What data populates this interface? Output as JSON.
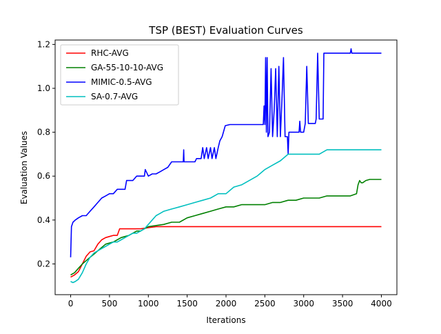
{
  "chart_data": {
    "type": "line",
    "title": "TSP (BEST) Evaluation Curves",
    "xlabel": "Iterations",
    "ylabel": "Evaluation Values",
    "xlim": [
      -200,
      4200
    ],
    "ylim": [
      0.06,
      1.22
    ],
    "xticks": [
      0,
      500,
      1000,
      1500,
      2000,
      2500,
      3000,
      3500,
      4000
    ],
    "yticks": [
      0.2,
      0.4,
      0.6,
      0.8,
      1.0,
      1.2
    ],
    "xtick_labels": [
      "0",
      "500",
      "1000",
      "1500",
      "2000",
      "2500",
      "3000",
      "3500",
      "4000"
    ],
    "ytick_labels": [
      "0.2",
      "0.4",
      "0.6",
      "0.8",
      "1.0",
      "1.2"
    ],
    "grid": false,
    "legend_position": "top-left",
    "series": [
      {
        "name": "RHC-AVG",
        "color": "#ff0000",
        "points": [
          [
            0,
            0.14
          ],
          [
            50,
            0.15
          ],
          [
            100,
            0.165
          ],
          [
            150,
            0.2
          ],
          [
            200,
            0.235
          ],
          [
            250,
            0.255
          ],
          [
            300,
            0.26
          ],
          [
            350,
            0.29
          ],
          [
            400,
            0.31
          ],
          [
            450,
            0.32
          ],
          [
            500,
            0.325
          ],
          [
            550,
            0.33
          ],
          [
            600,
            0.33
          ],
          [
            630,
            0.36
          ],
          [
            700,
            0.36
          ],
          [
            800,
            0.36
          ],
          [
            900,
            0.36
          ],
          [
            1000,
            0.365
          ],
          [
            1100,
            0.37
          ],
          [
            1300,
            0.37
          ],
          [
            2000,
            0.37
          ],
          [
            3000,
            0.37
          ],
          [
            4000,
            0.37
          ]
        ]
      },
      {
        "name": "GA-55-10-10-AVG",
        "color": "#008000",
        "points": [
          [
            0,
            0.15
          ],
          [
            50,
            0.16
          ],
          [
            100,
            0.18
          ],
          [
            150,
            0.2
          ],
          [
            200,
            0.215
          ],
          [
            250,
            0.23
          ],
          [
            300,
            0.245
          ],
          [
            350,
            0.26
          ],
          [
            400,
            0.275
          ],
          [
            450,
            0.29
          ],
          [
            500,
            0.295
          ],
          [
            550,
            0.3
          ],
          [
            600,
            0.31
          ],
          [
            650,
            0.32
          ],
          [
            700,
            0.325
          ],
          [
            750,
            0.33
          ],
          [
            800,
            0.34
          ],
          [
            850,
            0.35
          ],
          [
            900,
            0.35
          ],
          [
            950,
            0.36
          ],
          [
            1000,
            0.37
          ],
          [
            1100,
            0.375
          ],
          [
            1200,
            0.38
          ],
          [
            1300,
            0.39
          ],
          [
            1400,
            0.39
          ],
          [
            1500,
            0.41
          ],
          [
            1600,
            0.42
          ],
          [
            1700,
            0.43
          ],
          [
            1800,
            0.44
          ],
          [
            1900,
            0.45
          ],
          [
            2000,
            0.46
          ],
          [
            2100,
            0.46
          ],
          [
            2200,
            0.47
          ],
          [
            2300,
            0.47
          ],
          [
            2400,
            0.47
          ],
          [
            2500,
            0.47
          ],
          [
            2600,
            0.48
          ],
          [
            2700,
            0.48
          ],
          [
            2800,
            0.49
          ],
          [
            2900,
            0.49
          ],
          [
            3000,
            0.5
          ],
          [
            3100,
            0.5
          ],
          [
            3200,
            0.5
          ],
          [
            3300,
            0.51
          ],
          [
            3400,
            0.51
          ],
          [
            3500,
            0.51
          ],
          [
            3600,
            0.51
          ],
          [
            3680,
            0.52
          ],
          [
            3700,
            0.56
          ],
          [
            3720,
            0.58
          ],
          [
            3740,
            0.57
          ],
          [
            3760,
            0.57
          ],
          [
            3800,
            0.58
          ],
          [
            3850,
            0.585
          ],
          [
            4000,
            0.585
          ]
        ]
      },
      {
        "name": "MIMIC-0.5-AVG",
        "color": "#0000ff",
        "points": [
          [
            0,
            0.23
          ],
          [
            10,
            0.37
          ],
          [
            30,
            0.39
          ],
          [
            60,
            0.4
          ],
          [
            100,
            0.41
          ],
          [
            150,
            0.42
          ],
          [
            200,
            0.42
          ],
          [
            250,
            0.44
          ],
          [
            300,
            0.46
          ],
          [
            350,
            0.48
          ],
          [
            400,
            0.5
          ],
          [
            450,
            0.51
          ],
          [
            500,
            0.52
          ],
          [
            550,
            0.52
          ],
          [
            600,
            0.54
          ],
          [
            700,
            0.54
          ],
          [
            720,
            0.58
          ],
          [
            800,
            0.58
          ],
          [
            850,
            0.6
          ],
          [
            950,
            0.6
          ],
          [
            960,
            0.63
          ],
          [
            1000,
            0.6
          ],
          [
            1050,
            0.61
          ],
          [
            1100,
            0.61
          ],
          [
            1150,
            0.62
          ],
          [
            1200,
            0.63
          ],
          [
            1250,
            0.64
          ],
          [
            1300,
            0.665
          ],
          [
            1400,
            0.665
          ],
          [
            1450,
            0.665
          ],
          [
            1455,
            0.72
          ],
          [
            1460,
            0.665
          ],
          [
            1500,
            0.665
          ],
          [
            1600,
            0.665
          ],
          [
            1620,
            0.68
          ],
          [
            1680,
            0.68
          ],
          [
            1700,
            0.73
          ],
          [
            1720,
            0.68
          ],
          [
            1750,
            0.73
          ],
          [
            1770,
            0.68
          ],
          [
            1800,
            0.73
          ],
          [
            1820,
            0.68
          ],
          [
            1850,
            0.73
          ],
          [
            1870,
            0.68
          ],
          [
            1900,
            0.73
          ],
          [
            1920,
            0.76
          ],
          [
            1950,
            0.78
          ],
          [
            1990,
            0.83
          ],
          [
            2050,
            0.835
          ],
          [
            2200,
            0.835
          ],
          [
            2300,
            0.835
          ],
          [
            2400,
            0.835
          ],
          [
            2480,
            0.835
          ],
          [
            2490,
            0.92
          ],
          [
            2500,
            0.835
          ],
          [
            2510,
            1.14
          ],
          [
            2520,
            0.8
          ],
          [
            2530,
            1.14
          ],
          [
            2540,
            0.78
          ],
          [
            2560,
            0.8
          ],
          [
            2580,
            1.09
          ],
          [
            2600,
            0.78
          ],
          [
            2620,
            0.9
          ],
          [
            2640,
            1.09
          ],
          [
            2660,
            0.78
          ],
          [
            2680,
            1.1
          ],
          [
            2700,
            0.78
          ],
          [
            2720,
            0.95
          ],
          [
            2740,
            1.14
          ],
          [
            2760,
            0.78
          ],
          [
            2790,
            0.78
          ],
          [
            2800,
            0.7
          ],
          [
            2810,
            0.8
          ],
          [
            2900,
            0.8
          ],
          [
            2940,
            0.8
          ],
          [
            2950,
            0.85
          ],
          [
            2960,
            0.8
          ],
          [
            3000,
            0.8
          ],
          [
            3020,
            0.84
          ],
          [
            3040,
            1.1
          ],
          [
            3060,
            0.84
          ],
          [
            3150,
            0.84
          ],
          [
            3160,
            0.86
          ],
          [
            3180,
            1.16
          ],
          [
            3200,
            0.86
          ],
          [
            3250,
            0.86
          ],
          [
            3260,
            1.16
          ],
          [
            3500,
            1.16
          ],
          [
            3600,
            1.16
          ],
          [
            3610,
            1.18
          ],
          [
            3620,
            1.16
          ],
          [
            4000,
            1.16
          ]
        ]
      },
      {
        "name": "SA-0.7-AVG",
        "color": "#00bfbf",
        "points": [
          [
            0,
            0.12
          ],
          [
            30,
            0.115
          ],
          [
            60,
            0.12
          ],
          [
            100,
            0.13
          ],
          [
            150,
            0.16
          ],
          [
            200,
            0.2
          ],
          [
            250,
            0.23
          ],
          [
            300,
            0.25
          ],
          [
            350,
            0.26
          ],
          [
            400,
            0.27
          ],
          [
            450,
            0.28
          ],
          [
            500,
            0.29
          ],
          [
            550,
            0.3
          ],
          [
            600,
            0.3
          ],
          [
            650,
            0.31
          ],
          [
            700,
            0.32
          ],
          [
            750,
            0.33
          ],
          [
            800,
            0.34
          ],
          [
            850,
            0.34
          ],
          [
            900,
            0.35
          ],
          [
            950,
            0.36
          ],
          [
            1000,
            0.38
          ],
          [
            1050,
            0.4
          ],
          [
            1100,
            0.42
          ],
          [
            1150,
            0.43
          ],
          [
            1200,
            0.44
          ],
          [
            1300,
            0.45
          ],
          [
            1400,
            0.46
          ],
          [
            1500,
            0.47
          ],
          [
            1600,
            0.48
          ],
          [
            1700,
            0.49
          ],
          [
            1800,
            0.5
          ],
          [
            1900,
            0.52
          ],
          [
            2000,
            0.52
          ],
          [
            2100,
            0.55
          ],
          [
            2200,
            0.56
          ],
          [
            2300,
            0.58
          ],
          [
            2400,
            0.6
          ],
          [
            2500,
            0.63
          ],
          [
            2600,
            0.65
          ],
          [
            2700,
            0.67
          ],
          [
            2800,
            0.7
          ],
          [
            3000,
            0.7
          ],
          [
            3200,
            0.7
          ],
          [
            3300,
            0.72
          ],
          [
            3500,
            0.72
          ],
          [
            4000,
            0.72
          ]
        ]
      }
    ]
  }
}
